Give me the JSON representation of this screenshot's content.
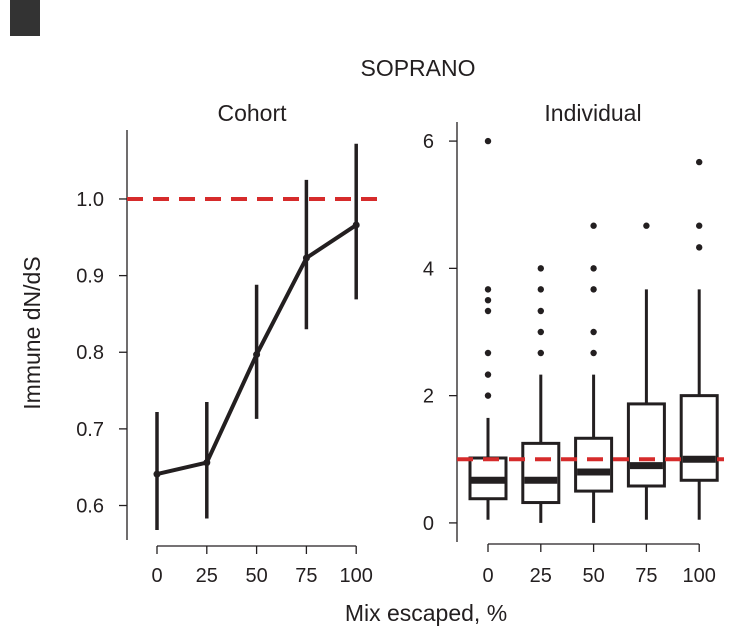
{
  "figure_title": "SOPRANO",
  "shared_xlabel": "Mix escaped, %",
  "colors": {
    "ink": "#231f20",
    "reference": "#d62b2b",
    "corner_block": "#333333"
  },
  "chart_data": [
    {
      "type": "line",
      "title": "Cohort",
      "ylabel": "Immune dN/dS",
      "x": [
        0,
        25,
        50,
        75,
        100
      ],
      "y": [
        0.641,
        0.656,
        0.797,
        0.923,
        0.966
      ],
      "y_low": [
        0.568,
        0.583,
        0.713,
        0.83,
        0.869
      ],
      "y_high": [
        0.722,
        0.735,
        0.888,
        1.025,
        1.072
      ],
      "x_ticks": [
        "0",
        "25",
        "50",
        "75",
        "100"
      ],
      "y_ticks": [
        0.6,
        0.7,
        0.8,
        0.9,
        1.0
      ],
      "y_tick_labels": [
        "0.6",
        "0.7",
        "0.8",
        "0.9",
        "1.0"
      ],
      "ylim": [
        0.555,
        1.09
      ],
      "reference_line": 1.0,
      "grid": false,
      "legend": "none"
    },
    {
      "type": "box",
      "title": "Individual",
      "categories": [
        "0",
        "25",
        "50",
        "75",
        "100"
      ],
      "boxes": [
        {
          "whisker_low": 0.05,
          "q1": 0.38,
          "median": 0.67,
          "q3": 1.02,
          "whisker_high": 1.65,
          "outliers": [
            2.0,
            2.33,
            2.67,
            3.33,
            3.5,
            3.67,
            6.0
          ]
        },
        {
          "whisker_low": 0.0,
          "q1": 0.32,
          "median": 0.67,
          "q3": 1.25,
          "whisker_high": 2.33,
          "outliers": [
            2.67,
            3.0,
            3.33,
            3.67,
            4.0
          ]
        },
        {
          "whisker_low": 0.0,
          "q1": 0.5,
          "median": 0.8,
          "q3": 1.33,
          "whisker_high": 2.33,
          "outliers": [
            2.67,
            3.0,
            3.67,
            4.0,
            4.67
          ]
        },
        {
          "whisker_low": 0.05,
          "q1": 0.58,
          "median": 0.9,
          "q3": 1.87,
          "whisker_high": 3.67,
          "outliers": [
            4.67
          ]
        },
        {
          "whisker_low": 0.05,
          "q1": 0.67,
          "median": 1.0,
          "q3": 2.0,
          "whisker_high": 3.67,
          "outliers": [
            4.33,
            4.67,
            5.67
          ]
        }
      ],
      "y_ticks": [
        0,
        2,
        4,
        6
      ],
      "y_tick_labels": [
        "0",
        "2",
        "4",
        "6"
      ],
      "ylim": [
        -0.3,
        6.3
      ],
      "reference_line": 1.0,
      "grid": false,
      "legend": "none"
    }
  ]
}
